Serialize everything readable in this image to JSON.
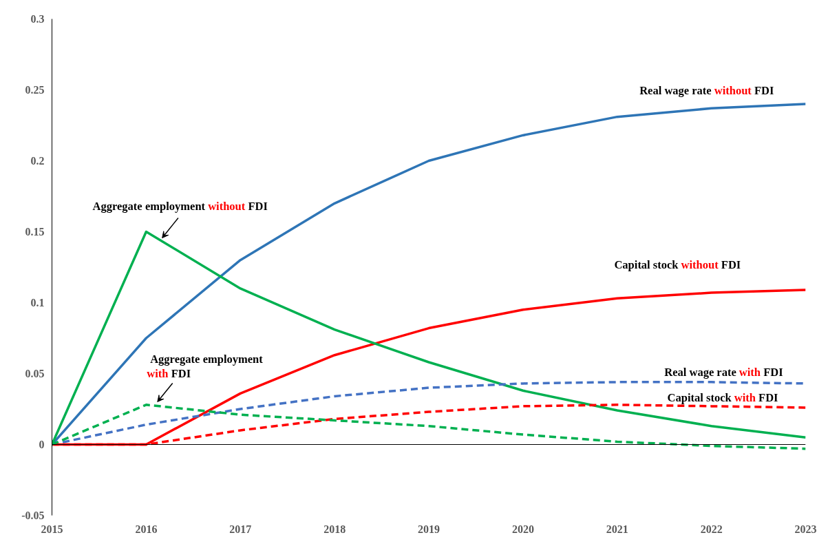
{
  "chart_data": {
    "type": "line",
    "x": [
      2015,
      2016,
      2017,
      2018,
      2019,
      2020,
      2021,
      2022,
      2023
    ],
    "xlim": [
      2015,
      2023
    ],
    "xticks": [
      2015,
      2016,
      2017,
      2018,
      2019,
      2020,
      2021,
      2022,
      2023
    ],
    "ylim": [
      -0.05,
      0.3
    ],
    "yticks": [
      -0.05,
      0,
      0.05,
      0.1,
      0.15,
      0.2,
      0.25,
      0.3
    ],
    "grid": false,
    "legend": false,
    "marker": "none",
    "ref_lines": [
      {
        "axis": "y",
        "value": 0,
        "color": "#000000"
      }
    ],
    "series": [
      {
        "name": "Real wage rate without FDI",
        "color": "#2e75b6",
        "line_style": "solid",
        "values": [
          0,
          0.075,
          0.13,
          0.17,
          0.2,
          0.218,
          0.231,
          0.237,
          0.24
        ]
      },
      {
        "name": "Capital stock without FDI",
        "color": "#ff0000",
        "line_style": "solid",
        "values": [
          0,
          0,
          0.036,
          0.063,
          0.082,
          0.095,
          0.103,
          0.107,
          0.109
        ]
      },
      {
        "name": "Aggregate employment without FDI",
        "color": "#00b050",
        "line_style": "solid",
        "values": [
          0,
          0.15,
          0.11,
          0.081,
          0.058,
          0.038,
          0.024,
          0.013,
          0.005
        ]
      },
      {
        "name": "Real wage rate with FDI",
        "color": "#4472c4",
        "line_style": "dashed",
        "values": [
          0,
          0.014,
          0.025,
          0.034,
          0.04,
          0.043,
          0.044,
          0.044,
          0.043
        ]
      },
      {
        "name": "Capital stock with FDI",
        "color": "#ff0000",
        "line_style": "dashed",
        "values": [
          0,
          0,
          0.01,
          0.018,
          0.023,
          0.027,
          0.028,
          0.027,
          0.026
        ]
      },
      {
        "name": "Aggregate employment with FDI",
        "color": "#00b050",
        "line_style": "dashed",
        "values": [
          0,
          0.028,
          0.021,
          0.017,
          0.013,
          0.007,
          0.002,
          -0.001,
          -0.003
        ]
      }
    ]
  }
}
